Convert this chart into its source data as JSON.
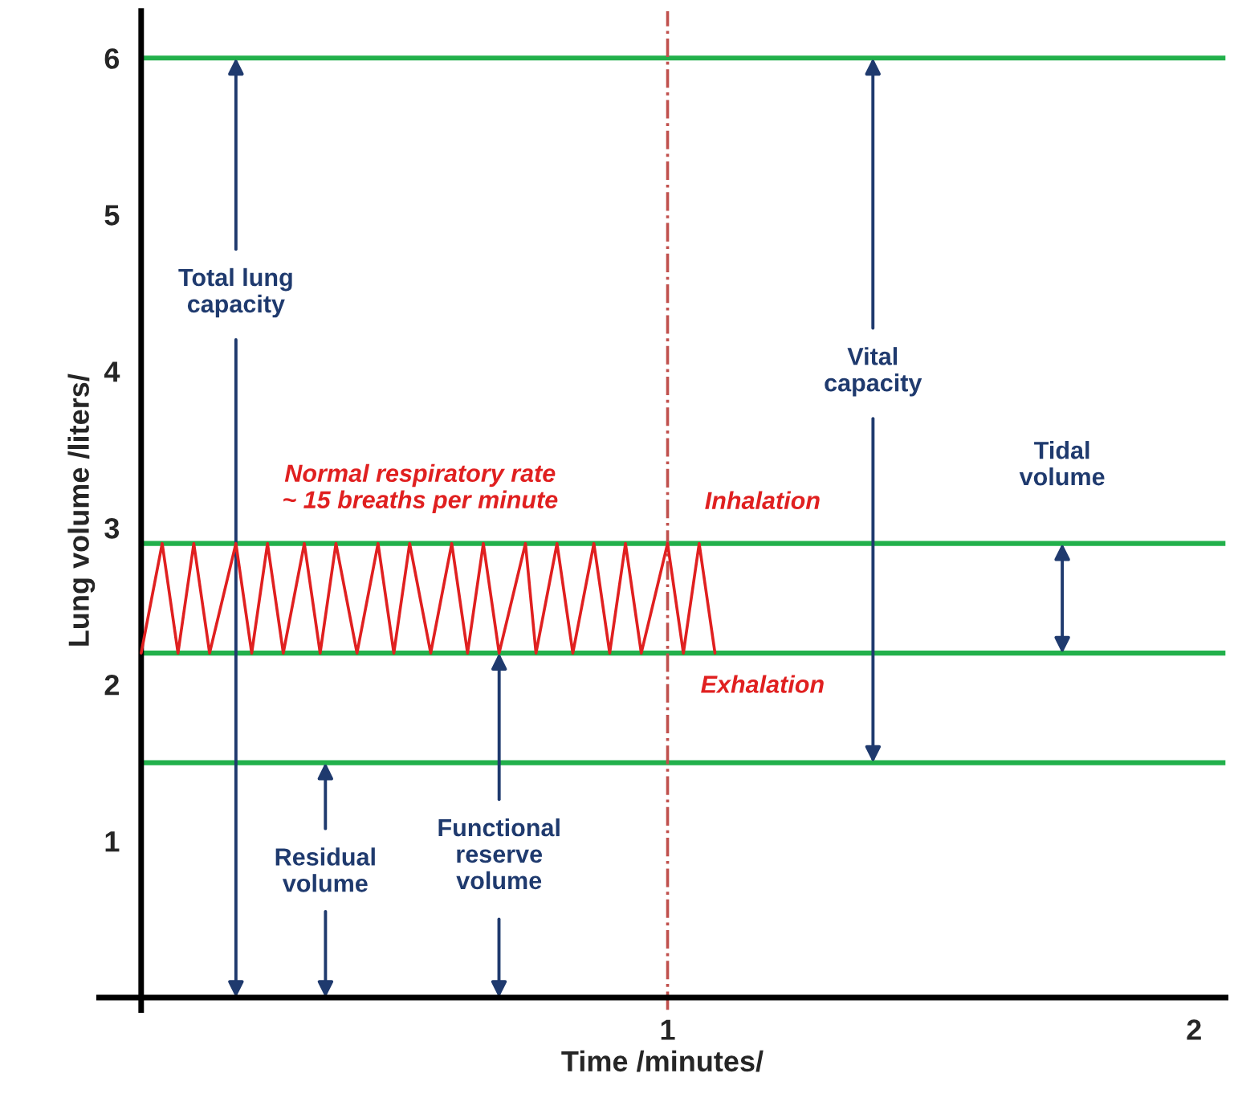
{
  "chart_data": {
    "type": "line",
    "xlabel": "Time /minutes/",
    "ylabel": "Lung volume /liters/",
    "xlim": [
      -0.08,
      2.06
    ],
    "ylim": [
      -0.08,
      6.3
    ],
    "xticks": [
      1,
      2
    ],
    "yticks": [
      1,
      2,
      3,
      4,
      5,
      6
    ],
    "grid": false,
    "legend": false,
    "marker": "none",
    "ref_lines": [
      {
        "axis": "y",
        "value": 6,
        "color": "#22b04b"
      },
      {
        "axis": "y",
        "value": 2.9,
        "color": "#22b04b"
      },
      {
        "axis": "y",
        "value": 2.2,
        "color": "#22b04b"
      },
      {
        "axis": "y",
        "value": 1.5,
        "color": "#22b04b"
      },
      {
        "axis": "x",
        "value": 1,
        "color": "#c0504d",
        "line_style": "dashdot"
      }
    ],
    "series": [
      {
        "color": "#e02020",
        "x": [
          0,
          0.04,
          0.07,
          0.1,
          0.13,
          0.18,
          0.21,
          0.24,
          0.27,
          0.31,
          0.34,
          0.37,
          0.41,
          0.45,
          0.48,
          0.51,
          0.55,
          0.59,
          0.62,
          0.65,
          0.68,
          0.73,
          0.75,
          0.79,
          0.82,
          0.86,
          0.89,
          0.92,
          0.95,
          1.0,
          1.03,
          1.06,
          1.09
        ],
        "values": [
          2.2,
          2.9,
          2.2,
          2.9,
          2.2,
          2.9,
          2.2,
          2.9,
          2.2,
          2.9,
          2.2,
          2.9,
          2.2,
          2.9,
          2.2,
          2.9,
          2.2,
          2.9,
          2.2,
          2.9,
          2.2,
          2.9,
          2.2,
          2.9,
          2.2,
          2.9,
          2.2,
          2.9,
          2.2,
          2.9,
          2.2,
          2.9,
          2.2
        ]
      }
    ],
    "annotations": [
      {
        "text": "Total lung\ncapacity",
        "x": 0.18,
        "y": 6
      },
      {
        "text": "Residual\nvolume",
        "x": 0.35,
        "y": 1.5
      },
      {
        "text": "Functional\nreserve\nvolume",
        "x": 0.68,
        "y": 2.2
      },
      {
        "text": "Vital\ncapacity",
        "x": 1.39,
        "y": 6
      },
      "Tidal\nvolume",
      "Normal respiratory rate\n~ 15 breaths per minute",
      "Inhalation",
      "Exhalation"
    ]
  }
}
